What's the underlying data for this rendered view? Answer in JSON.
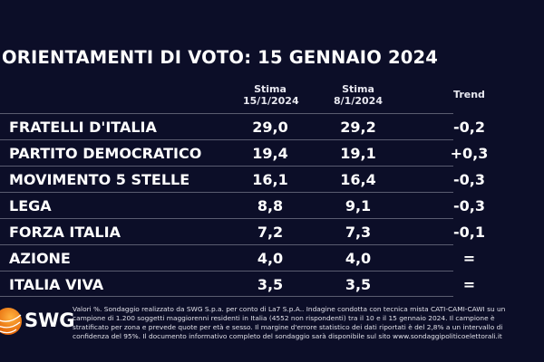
{
  "title": "ORIENTAMENTI DI VOTO: 15 GENNAIO 2024",
  "headers": {
    "col1": "Stima",
    "col1_date": "15/1/2024",
    "col2": "Stima",
    "col2_date": "8/1/2024",
    "col3": "Trend"
  },
  "rows": [
    {
      "party": "FRATELLI D'ITALIA",
      "current": "29,0",
      "previous": "29,2",
      "trend": "-0,2"
    },
    {
      "party": "PARTITO DEMOCRATICO",
      "current": "19,4",
      "previous": "19,1",
      "trend": "+0,3"
    },
    {
      "party": "MOVIMENTO 5 STELLE",
      "current": "16,1",
      "previous": "16,4",
      "trend": "-0,3"
    },
    {
      "party": "LEGA",
      "current": "8,8",
      "previous": "9,1",
      "trend": "-0,3"
    },
    {
      "party": "FORZA ITALIA",
      "current": "7,2",
      "previous": "7,3",
      "trend": "-0,1"
    },
    {
      "party": "AZIONE",
      "current": "4,0",
      "previous": "4,0",
      "trend": "="
    },
    {
      "party": "ITALIA VIVA",
      "current": "3,5",
      "previous": "3,5",
      "trend": "="
    }
  ],
  "logo": {
    "text": "SWG",
    "color": "#f07a10"
  },
  "note": "Valori %. Sondaggio realizzato da SWG S.p.a. per conto di La7 S.p.A.. Indagine condotta con tecnica mista CATI-CAMI-CAWI su un campione di 1.200 soggetti maggiorenni residenti in Italia (4552 non rispondenti) tra il 10 e il 15 gennaio 2024. Il campione è stratificato per zona e prevede quote per età e sesso. Il margine d'errore statistico dei dati riportati è del 2,8% a un intervallo di confidenza del 95%. Il documento informativo completo del sondaggio sarà disponibile sul sito www.sondaggipoliticoelettorali.it"
}
